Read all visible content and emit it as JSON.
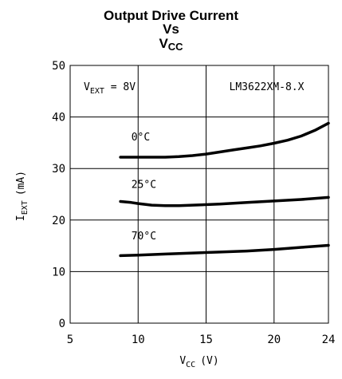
{
  "chart_data": {
    "type": "line",
    "title_line1": "Output Drive Current",
    "title_line2": "Vs",
    "title_line3_main": "V",
    "title_line3_sub": "CC",
    "xlabel_main": "V",
    "xlabel_sub": "CC",
    "xlabel_unit": "(V)",
    "ylabel_main": "I",
    "ylabel_sub": "EXT",
    "ylabel_unit": "(mA)",
    "xlim": [
      5,
      24
    ],
    "ylim": [
      0,
      50
    ],
    "x_ticks": [
      5,
      10,
      15,
      20,
      24
    ],
    "x_tick_labels": [
      "5",
      "10",
      "15",
      "20",
      "24"
    ],
    "y_ticks": [
      0,
      10,
      20,
      30,
      40,
      50
    ],
    "y_tick_labels": [
      "0",
      "10",
      "20",
      "30",
      "40",
      "50"
    ],
    "x_grid": [
      10,
      15,
      20
    ],
    "y_grid": [
      10,
      20,
      30,
      40
    ],
    "annotations": {
      "vext_main": "V",
      "vext_sub": "EXT",
      "vext_value": " = 8V",
      "part": "LM3622XM-8.X"
    },
    "series": [
      {
        "name": "0°C",
        "x": [
          8.7,
          10,
          11,
          12,
          13,
          14,
          15,
          16,
          17,
          18,
          19,
          20,
          21,
          22,
          23,
          24
        ],
        "y": [
          32.2,
          32.2,
          32.2,
          32.2,
          32.3,
          32.5,
          32.8,
          33.2,
          33.6,
          34.0,
          34.4,
          34.9,
          35.5,
          36.3,
          37.4,
          38.8
        ]
      },
      {
        "name": "25°C",
        "x": [
          8.7,
          9.5,
          10,
          11,
          12,
          13,
          14,
          16,
          18,
          20,
          22,
          24
        ],
        "y": [
          23.6,
          23.4,
          23.2,
          22.9,
          22.8,
          22.8,
          22.9,
          23.1,
          23.4,
          23.7,
          24.0,
          24.4
        ]
      },
      {
        "name": "70°C",
        "x": [
          8.7,
          10,
          12,
          14,
          16,
          18,
          20,
          22,
          24
        ],
        "y": [
          13.1,
          13.2,
          13.4,
          13.6,
          13.8,
          14.0,
          14.3,
          14.7,
          15.1
        ]
      }
    ]
  }
}
